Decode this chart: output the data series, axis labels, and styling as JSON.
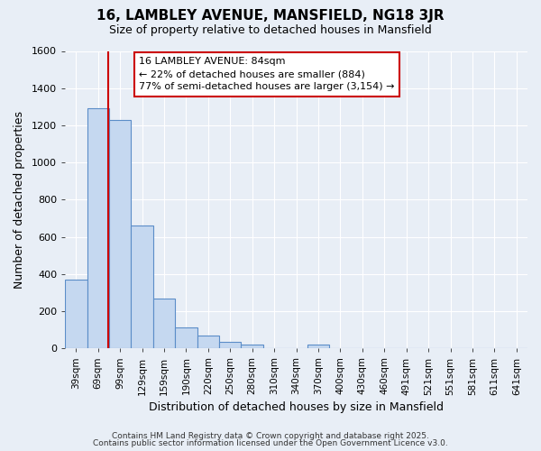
{
  "title_line1": "16, LAMBLEY AVENUE, MANSFIELD, NG18 3JR",
  "title_line2": "Size of property relative to detached houses in Mansfield",
  "xlabel": "Distribution of detached houses by size in Mansfield",
  "ylabel": "Number of detached properties",
  "categories": [
    "39sqm",
    "69sqm",
    "99sqm",
    "129sqm",
    "159sqm",
    "190sqm",
    "220sqm",
    "250sqm",
    "280sqm",
    "310sqm",
    "340sqm",
    "370sqm",
    "400sqm",
    "430sqm",
    "460sqm",
    "491sqm",
    "521sqm",
    "551sqm",
    "581sqm",
    "611sqm",
    "641sqm"
  ],
  "values": [
    370,
    1290,
    1230,
    660,
    270,
    115,
    70,
    35,
    20,
    0,
    0,
    20,
    0,
    0,
    0,
    0,
    0,
    0,
    0,
    0,
    0
  ],
  "bar_color": "#c5d8f0",
  "bar_edge_color": "#5b8dc8",
  "background_color": "#e8eef6",
  "grid_color": "#ffffff",
  "property_line_x": 1.47,
  "annotation_text_line1": "16 LAMBLEY AVENUE: 84sqm",
  "annotation_text_line2": "← 22% of detached houses are smaller (884)",
  "annotation_text_line3": "77% of semi-detached houses are larger (3,154) →",
  "annotation_box_color": "#ffffff",
  "annotation_box_edge_color": "#cc0000",
  "ylim": [
    0,
    1600
  ],
  "yticks": [
    0,
    200,
    400,
    600,
    800,
    1000,
    1200,
    1400,
    1600
  ],
  "footer_line1": "Contains HM Land Registry data © Crown copyright and database right 2025.",
  "footer_line2": "Contains public sector information licensed under the Open Government Licence v3.0."
}
